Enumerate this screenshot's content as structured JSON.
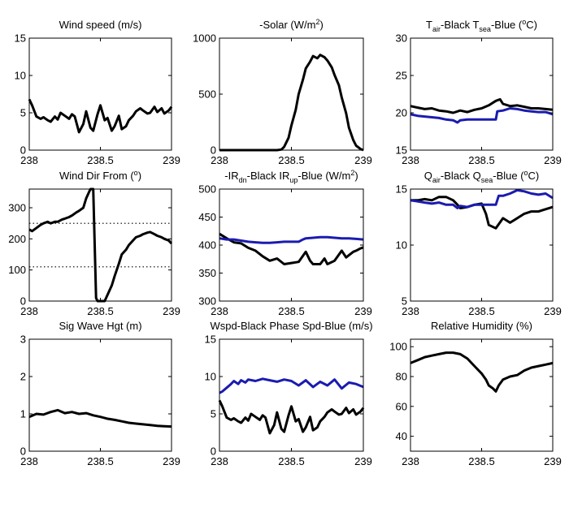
{
  "chart_data": [
    {
      "type": "line",
      "title": "Wind speed (m/s)",
      "xlim": [
        238,
        239
      ],
      "ylim": [
        0,
        15
      ],
      "xticks": [
        238,
        238.5,
        239
      ],
      "yticks": [
        0,
        5,
        10,
        15
      ],
      "series": [
        {
          "color": "#000000",
          "x": [
            238,
            238.02,
            238.05,
            238.08,
            238.1,
            238.13,
            238.15,
            238.18,
            238.2,
            238.22,
            238.25,
            238.28,
            238.3,
            238.32,
            238.35,
            238.38,
            238.4,
            238.43,
            238.45,
            238.48,
            238.5,
            238.53,
            238.55,
            238.58,
            238.6,
            238.63,
            238.65,
            238.68,
            238.7,
            238.73,
            238.75,
            238.78,
            238.8,
            238.83,
            238.85,
            238.88,
            238.9,
            238.93,
            238.95,
            238.98,
            239
          ],
          "y": [
            6.8,
            6.0,
            4.5,
            4.2,
            4.4,
            4.0,
            3.8,
            4.5,
            4.1,
            5.0,
            4.6,
            4.2,
            4.8,
            4.5,
            2.4,
            3.5,
            5.2,
            3.0,
            2.6,
            4.8,
            6.0,
            4.0,
            4.3,
            2.6,
            3.2,
            4.6,
            2.8,
            3.2,
            4.0,
            4.6,
            5.2,
            5.6,
            5.3,
            4.9,
            5.0,
            5.8,
            5.1,
            5.6,
            4.9,
            5.3,
            5.8
          ]
        }
      ]
    },
    {
      "type": "line",
      "title": "-Solar (W/m",
      "title_sup": "2",
      "title_end": ")",
      "xlim": [
        238,
        239
      ],
      "ylim": [
        0,
        1000
      ],
      "xticks": [
        238,
        238.5,
        239
      ],
      "yticks": [
        0,
        500,
        1000
      ],
      "series": [
        {
          "color": "#000000",
          "x": [
            238,
            238.1,
            238.2,
            238.3,
            238.4,
            238.43,
            238.45,
            238.48,
            238.5,
            238.53,
            238.55,
            238.58,
            238.6,
            238.63,
            238.65,
            238.68,
            238.7,
            238.73,
            238.75,
            238.78,
            238.8,
            238.83,
            238.85,
            238.88,
            238.9,
            238.93,
            238.95,
            238.98,
            239
          ],
          "y": [
            0,
            0,
            0,
            0,
            0,
            5,
            30,
            110,
            220,
            360,
            500,
            630,
            730,
            790,
            840,
            820,
            850,
            830,
            800,
            740,
            670,
            580,
            470,
            330,
            200,
            90,
            40,
            10,
            0
          ]
        }
      ]
    },
    {
      "type": "line",
      "title_parts": [
        "T",
        "air",
        "-Black  T",
        "sea",
        "-Blue (",
        "o",
        "C)"
      ],
      "xlim": [
        238,
        239
      ],
      "ylim": [
        15,
        30
      ],
      "xticks": [
        238,
        238.5,
        239
      ],
      "yticks": [
        15,
        20,
        25,
        30
      ],
      "series": [
        {
          "color": "#000000",
          "x": [
            238,
            238.05,
            238.1,
            238.15,
            238.2,
            238.25,
            238.3,
            238.35,
            238.4,
            238.45,
            238.5,
            238.55,
            238.6,
            238.63,
            238.65,
            238.7,
            238.75,
            238.8,
            238.85,
            238.9,
            238.95,
            239
          ],
          "y": [
            20.9,
            20.7,
            20.5,
            20.6,
            20.3,
            20.2,
            20.0,
            20.3,
            20.1,
            20.4,
            20.6,
            21.0,
            21.6,
            21.8,
            21.2,
            20.9,
            21.0,
            20.8,
            20.6,
            20.6,
            20.5,
            20.4
          ]
        },
        {
          "color": "#1b1bb0",
          "x": [
            238,
            238.05,
            238.1,
            238.15,
            238.2,
            238.25,
            238.3,
            238.33,
            238.35,
            238.4,
            238.45,
            238.5,
            238.55,
            238.6,
            238.61,
            238.65,
            238.7,
            238.75,
            238.8,
            238.85,
            238.9,
            238.95,
            239
          ],
          "y": [
            19.8,
            19.6,
            19.5,
            19.4,
            19.3,
            19.1,
            19.0,
            18.7,
            19.0,
            19.1,
            19.1,
            19.1,
            19.1,
            19.1,
            20.2,
            20.3,
            20.6,
            20.5,
            20.3,
            20.2,
            20.1,
            20.1,
            19.8
          ]
        }
      ]
    },
    {
      "type": "line",
      "title_parts": [
        "Wind Dir From (",
        "o",
        ")"
      ],
      "xlim": [
        238,
        239
      ],
      "ylim": [
        0,
        360
      ],
      "xticks": [
        238,
        238.5,
        239
      ],
      "yticks": [
        0,
        100,
        200,
        300
      ],
      "hlines": [
        250,
        110
      ],
      "series": [
        {
          "color": "#000000",
          "x": [
            238,
            238.02,
            238.05,
            238.08,
            238.1,
            238.13,
            238.15,
            238.18,
            238.2,
            238.23,
            238.25,
            238.28,
            238.3,
            238.33,
            238.35,
            238.38,
            238.4,
            238.42,
            238.43,
            238.45,
            238.47,
            238.48,
            238.5,
            238.53,
            238.55,
            238.58,
            238.6,
            238.63,
            238.65,
            238.68,
            238.7,
            238.73,
            238.75,
            238.78,
            238.8,
            238.83,
            238.85,
            238.88,
            238.9,
            238.93,
            238.95,
            238.98,
            239
          ],
          "y": [
            230,
            225,
            235,
            245,
            250,
            255,
            250,
            255,
            255,
            262,
            265,
            270,
            275,
            285,
            290,
            300,
            330,
            350,
            360,
            360,
            10,
            0,
            0,
            0,
            20,
            50,
            80,
            120,
            150,
            165,
            180,
            195,
            205,
            210,
            215,
            220,
            222,
            215,
            210,
            205,
            200,
            195,
            185
          ]
        }
      ]
    },
    {
      "type": "line",
      "title_parts": [
        "-IR",
        "dn",
        "-Black  IR",
        "up",
        "-Blue (W/m",
        "2",
        ")"
      ],
      "xlim": [
        238,
        239
      ],
      "ylim": [
        300,
        500
      ],
      "xticks": [
        238,
        238.5,
        239
      ],
      "yticks": [
        300,
        350,
        400,
        450,
        500
      ],
      "series": [
        {
          "color": "#000000",
          "x": [
            238,
            238.05,
            238.1,
            238.15,
            238.2,
            238.25,
            238.3,
            238.35,
            238.4,
            238.45,
            238.5,
            238.55,
            238.6,
            238.63,
            238.65,
            238.7,
            238.73,
            238.75,
            238.8,
            238.85,
            238.88,
            238.9,
            238.93,
            238.95,
            238.98,
            239
          ],
          "y": [
            420,
            412,
            405,
            403,
            395,
            390,
            380,
            372,
            376,
            366,
            368,
            370,
            388,
            372,
            366,
            366,
            376,
            366,
            372,
            390,
            378,
            382,
            388,
            390,
            394,
            396
          ]
        },
        {
          "color": "#1b1bb0",
          "x": [
            238,
            238.05,
            238.1,
            238.15,
            238.2,
            238.25,
            238.3,
            238.35,
            238.4,
            238.45,
            238.5,
            238.55,
            238.58,
            238.6,
            238.65,
            238.7,
            238.75,
            238.8,
            238.85,
            238.9,
            238.95,
            239
          ],
          "y": [
            412,
            410,
            410,
            408,
            406,
            405,
            404,
            404,
            405,
            406,
            406,
            406,
            410,
            412,
            413,
            414,
            414,
            413,
            412,
            412,
            411,
            410
          ]
        }
      ]
    },
    {
      "type": "line",
      "title_parts": [
        "Q",
        "air",
        "-Black  Q",
        "sea",
        "-Blue (",
        "o",
        "C)"
      ],
      "xlim": [
        238,
        239
      ],
      "ylim": [
        5,
        15
      ],
      "xticks": [
        238,
        238.5,
        239
      ],
      "yticks": [
        5,
        10,
        15
      ],
      "series": [
        {
          "color": "#000000",
          "x": [
            238,
            238.05,
            238.1,
            238.15,
            238.2,
            238.25,
            238.3,
            238.33,
            238.35,
            238.4,
            238.45,
            238.5,
            238.53,
            238.55,
            238.6,
            238.65,
            238.7,
            238.75,
            238.8,
            238.85,
            238.9,
            238.95,
            239
          ],
          "y": [
            14.0,
            14.0,
            14.1,
            14.0,
            14.3,
            14.3,
            14.0,
            13.6,
            13.3,
            13.4,
            13.6,
            13.7,
            12.8,
            11.8,
            11.5,
            12.4,
            12.0,
            12.4,
            12.8,
            13.0,
            13.0,
            13.2,
            13.4
          ]
        },
        {
          "color": "#1b1bb0",
          "x": [
            238,
            238.05,
            238.1,
            238.15,
            238.2,
            238.25,
            238.3,
            238.33,
            238.35,
            238.4,
            238.45,
            238.5,
            238.55,
            238.6,
            238.62,
            238.65,
            238.7,
            238.75,
            238.8,
            238.85,
            238.9,
            238.95,
            239
          ],
          "y": [
            14.0,
            13.9,
            13.8,
            13.7,
            13.8,
            13.6,
            13.6,
            13.3,
            13.5,
            13.4,
            13.6,
            13.6,
            13.6,
            13.6,
            14.4,
            14.4,
            14.6,
            14.9,
            14.8,
            14.6,
            14.5,
            14.6,
            14.2
          ]
        }
      ]
    },
    {
      "type": "line",
      "title": "Sig Wave Hgt (m)",
      "xlim": [
        238,
        239
      ],
      "ylim": [
        0,
        3
      ],
      "xticks": [
        238,
        238.5,
        239
      ],
      "yticks": [
        0,
        1,
        2,
        3
      ],
      "series": [
        {
          "color": "#000000",
          "x": [
            238,
            238.05,
            238.1,
            238.15,
            238.2,
            238.25,
            238.3,
            238.35,
            238.4,
            238.45,
            238.5,
            238.55,
            238.6,
            238.65,
            238.7,
            238.75,
            238.8,
            238.85,
            238.9,
            238.95,
            239
          ],
          "y": [
            0.92,
            1.0,
            0.98,
            1.05,
            1.1,
            1.02,
            1.05,
            1.0,
            1.02,
            0.96,
            0.92,
            0.87,
            0.84,
            0.8,
            0.76,
            0.74,
            0.72,
            0.7,
            0.68,
            0.67,
            0.66
          ]
        }
      ]
    },
    {
      "type": "line",
      "title": "Wspd-Black  Phase Spd-Blue (m/s)",
      "xlim": [
        238,
        239
      ],
      "ylim": [
        0,
        15
      ],
      "xticks": [
        238,
        238.5,
        239
      ],
      "yticks": [
        0,
        5,
        10,
        15
      ],
      "series": [
        {
          "color": "#000000",
          "x": [
            238,
            238.02,
            238.05,
            238.08,
            238.1,
            238.13,
            238.15,
            238.18,
            238.2,
            238.22,
            238.25,
            238.28,
            238.3,
            238.32,
            238.35,
            238.38,
            238.4,
            238.43,
            238.45,
            238.48,
            238.5,
            238.53,
            238.55,
            238.58,
            238.6,
            238.63,
            238.65,
            238.68,
            238.7,
            238.73,
            238.75,
            238.78,
            238.8,
            238.83,
            238.85,
            238.88,
            238.9,
            238.93,
            238.95,
            238.98,
            239
          ],
          "y": [
            6.8,
            6.0,
            4.5,
            4.2,
            4.4,
            4.0,
            3.8,
            4.5,
            4.1,
            5.0,
            4.6,
            4.2,
            4.8,
            4.5,
            2.4,
            3.5,
            5.2,
            3.0,
            2.6,
            4.8,
            6.0,
            4.0,
            4.3,
            2.6,
            3.2,
            4.6,
            2.8,
            3.2,
            4.0,
            4.6,
            5.2,
            5.6,
            5.3,
            4.9,
            5.0,
            5.8,
            5.1,
            5.6,
            4.9,
            5.3,
            5.8
          ]
        },
        {
          "color": "#1b1bb0",
          "x": [
            238,
            238.02,
            238.05,
            238.08,
            238.1,
            238.13,
            238.15,
            238.18,
            238.2,
            238.25,
            238.3,
            238.35,
            238.4,
            238.45,
            238.5,
            238.55,
            238.6,
            238.65,
            238.7,
            238.75,
            238.8,
            238.85,
            238.9,
            238.95,
            239
          ],
          "y": [
            7.8,
            8.0,
            8.5,
            9.0,
            9.4,
            9.0,
            9.5,
            9.2,
            9.6,
            9.4,
            9.7,
            9.5,
            9.3,
            9.6,
            9.4,
            8.8,
            9.5,
            8.6,
            9.3,
            8.8,
            9.6,
            8.4,
            9.2,
            9.0,
            8.6
          ]
        }
      ]
    },
    {
      "type": "line",
      "title": "Relative Humidity (%)",
      "xlim": [
        238,
        239
      ],
      "ylim": [
        30,
        105
      ],
      "xticks": [
        238,
        238.5,
        239
      ],
      "yticks": [
        40,
        60,
        80,
        100
      ],
      "series": [
        {
          "color": "#000000",
          "x": [
            238,
            238.05,
            238.1,
            238.15,
            238.2,
            238.25,
            238.3,
            238.35,
            238.4,
            238.45,
            238.5,
            238.53,
            238.55,
            238.58,
            238.6,
            238.62,
            238.65,
            238.7,
            238.75,
            238.8,
            238.85,
            238.9,
            238.95,
            239
          ],
          "y": [
            89,
            91,
            93,
            94,
            95,
            96,
            96,
            95,
            92,
            87,
            82,
            78,
            74,
            72,
            70,
            74,
            78,
            80,
            81,
            84,
            86,
            87,
            88,
            89
          ]
        }
      ]
    }
  ]
}
